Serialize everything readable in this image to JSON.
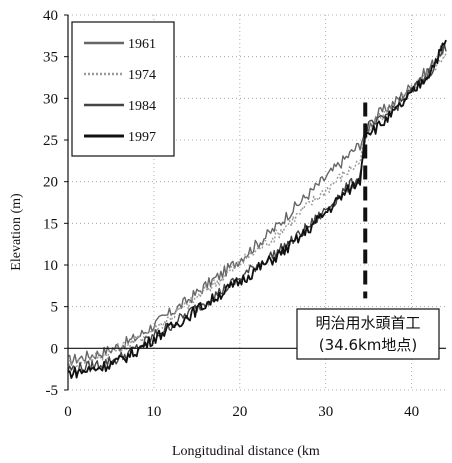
{
  "chart_data": {
    "type": "line",
    "xlabel": "Longitudinal distance (km",
    "ylabel": "Elevation (m)",
    "xlim": [
      0,
      44
    ],
    "ylim": [
      -5,
      40
    ],
    "xticks": [
      0,
      10,
      20,
      30,
      40
    ],
    "yticks": [
      -5,
      0,
      5,
      10,
      15,
      20,
      25,
      30,
      35,
      40
    ],
    "grid": true,
    "legend_position": "top-left",
    "series": [
      {
        "name": "1961",
        "color": "#666666",
        "dash": "",
        "x": [
          0,
          2,
          4,
          6,
          8,
          10,
          12,
          14,
          16,
          18,
          20,
          22,
          24,
          26,
          28,
          30,
          32,
          34,
          34.6,
          36,
          38,
          40,
          42,
          44
        ],
        "y": [
          -1.5,
          -1.0,
          -0.5,
          0.3,
          1.3,
          2.8,
          4.3,
          5.8,
          7.5,
          9.0,
          10.7,
          12.5,
          14.3,
          16.5,
          18.5,
          20.5,
          22.5,
          24.5,
          26.0,
          28.0,
          29.5,
          31.5,
          33.5,
          36.5
        ]
      },
      {
        "name": "1974",
        "color": "#9a9a9a",
        "dash": "2,2",
        "x": [
          0,
          2,
          4,
          6,
          8,
          10,
          12,
          14,
          16,
          18,
          20,
          22,
          24,
          26,
          28,
          30,
          32,
          34,
          34.6,
          36,
          38,
          40,
          42,
          44
        ],
        "y": [
          -2.0,
          -1.5,
          -0.8,
          0.0,
          1.0,
          2.3,
          3.8,
          5.3,
          7.0,
          8.5,
          10.2,
          11.8,
          13.4,
          15.3,
          17.2,
          19.0,
          20.8,
          22.5,
          25.0,
          27.5,
          29.0,
          31.0,
          33.0,
          35.5
        ]
      },
      {
        "name": "1984",
        "color": "#444444",
        "dash": "",
        "x": [
          0,
          2,
          4,
          6,
          8,
          10,
          12,
          14,
          16,
          18,
          20,
          22,
          24,
          26,
          28,
          30,
          32,
          34,
          34.6,
          36,
          38,
          40,
          42,
          44
        ],
        "y": [
          -2.5,
          -2.3,
          -1.8,
          -1.2,
          0.0,
          1.5,
          2.8,
          4.2,
          5.6,
          7.0,
          8.4,
          10.0,
          11.3,
          12.8,
          14.6,
          16.6,
          18.8,
          20.6,
          26.5,
          27.0,
          28.8,
          30.8,
          33.0,
          36.3
        ]
      },
      {
        "name": "1997",
        "color": "#111111",
        "dash": "",
        "x": [
          0,
          2,
          4,
          6,
          8,
          10,
          12,
          14,
          16,
          18,
          20,
          22,
          24,
          26,
          28,
          30,
          32,
          34,
          34.6,
          36,
          38,
          40,
          42,
          44
        ],
        "y": [
          -3.0,
          -2.7,
          -2.2,
          -1.5,
          -0.3,
          1.2,
          2.5,
          3.9,
          5.3,
          6.7,
          8.0,
          9.5,
          10.8,
          12.4,
          14.3,
          16.3,
          18.4,
          20.2,
          26.0,
          26.5,
          28.3,
          30.5,
          33.0,
          36.8
        ]
      }
    ],
    "annotations": [
      {
        "type": "dashed-vertical-line",
        "x": 34.6,
        "y_range": [
          6,
          29.5
        ]
      },
      {
        "type": "label-box",
        "lines": [
          "明治用水頭首工",
          "(34.6km地点)"
        ]
      }
    ]
  }
}
